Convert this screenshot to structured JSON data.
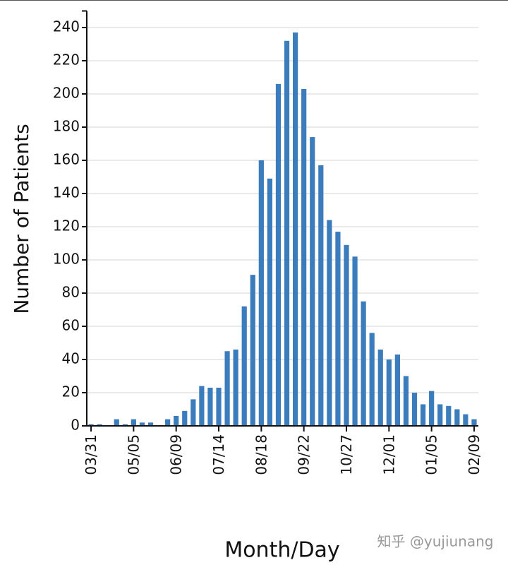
{
  "chart_data": {
    "type": "bar",
    "categories": [
      "03/31",
      null,
      null,
      null,
      null,
      "05/05",
      null,
      null,
      null,
      null,
      "06/09",
      null,
      null,
      null,
      null,
      "07/14",
      null,
      null,
      null,
      null,
      "08/18",
      null,
      null,
      null,
      null,
      "09/22",
      null,
      null,
      null,
      null,
      "10/27",
      null,
      null,
      null,
      null,
      "12/01",
      null,
      null,
      null,
      null,
      "01/05",
      null,
      null,
      null,
      null,
      "02/09"
    ],
    "values": [
      1,
      1,
      0,
      4,
      1,
      4,
      2,
      2,
      0,
      4,
      6,
      9,
      16,
      24,
      23,
      23,
      45,
      46,
      72,
      91,
      160,
      149,
      206,
      232,
      237,
      203,
      174,
      157,
      124,
      117,
      109,
      102,
      75,
      56,
      46,
      40,
      43,
      30,
      20,
      13,
      21,
      13,
      12,
      10,
      7,
      4
    ],
    "color": "#3b7cbc",
    "ylabel": "Number of Patients",
    "xlabel": "Month/Day",
    "annotation": "知乎 @yujiunang",
    "ylim": [
      0,
      250
    ],
    "yticks": [
      0,
      20,
      40,
      60,
      80,
      100,
      120,
      140,
      160,
      180,
      200,
      220,
      240
    ],
    "grid": true
  }
}
